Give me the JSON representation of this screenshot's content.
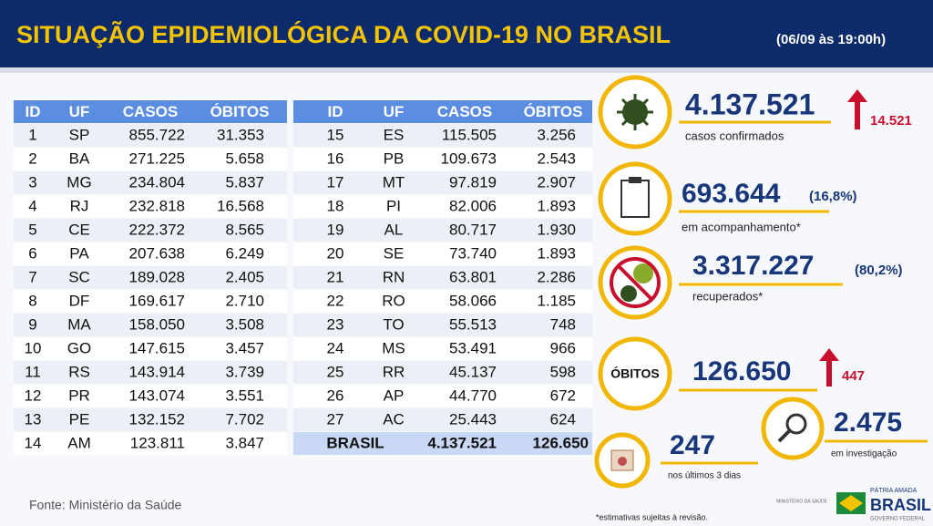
{
  "header": {
    "title": "SITUAÇÃO EPIDEMIOLÓGICA DA COVID-19 NO BRASIL",
    "subtitle": "(06/09 às 19:00h)"
  },
  "left_table": {
    "columns": [
      "ID",
      "UF",
      "CASOS",
      "ÓBITOS"
    ],
    "rows": [
      [
        "1",
        "SP",
        "855.722",
        "31.353"
      ],
      [
        "2",
        "BA",
        "271.225",
        "5.658"
      ],
      [
        "3",
        "MG",
        "234.804",
        "5.837"
      ],
      [
        "4",
        "RJ",
        "232.818",
        "16.568"
      ],
      [
        "5",
        "CE",
        "222.372",
        "8.565"
      ],
      [
        "6",
        "PA",
        "207.638",
        "6.249"
      ],
      [
        "7",
        "SC",
        "189.028",
        "2.405"
      ],
      [
        "8",
        "DF",
        "169.617",
        "2.710"
      ],
      [
        "9",
        "MA",
        "158.050",
        "3.508"
      ],
      [
        "10",
        "GO",
        "147.615",
        "3.457"
      ],
      [
        "11",
        "RS",
        "143.914",
        "3.739"
      ],
      [
        "12",
        "PR",
        "143.074",
        "3.551"
      ],
      [
        "13",
        "PE",
        "132.152",
        "7.702"
      ],
      [
        "14",
        "AM",
        "123.811",
        "3.847"
      ]
    ]
  },
  "right_table": {
    "columns": [
      "ID",
      "UF",
      "CASOS",
      "ÓBITOS"
    ],
    "rows": [
      [
        "15",
        "ES",
        "115.505",
        "3.256"
      ],
      [
        "16",
        "PB",
        "109.673",
        "2.543"
      ],
      [
        "17",
        "MT",
        "97.819",
        "2.907"
      ],
      [
        "18",
        "PI",
        "82.006",
        "1.893"
      ],
      [
        "19",
        "AL",
        "80.717",
        "1.930"
      ],
      [
        "20",
        "SE",
        "73.740",
        "1.893"
      ],
      [
        "21",
        "RN",
        "63.801",
        "2.286"
      ],
      [
        "22",
        "RO",
        "58.066",
        "1.185"
      ],
      [
        "23",
        "TO",
        "55.513",
        "748"
      ],
      [
        "24",
        "MS",
        "53.491",
        "966"
      ],
      [
        "25",
        "RR",
        "45.137",
        "598"
      ],
      [
        "26",
        "AP",
        "44.770",
        "672"
      ],
      [
        "27",
        "AC",
        "25.443",
        "624"
      ]
    ],
    "total": [
      "BRASIL",
      "4.137.521",
      "126.650"
    ]
  },
  "stats": {
    "confirmed": {
      "value": "4.137.521",
      "increase": "14.521",
      "label": "casos confirmados"
    },
    "monitoring": {
      "value": "693.644",
      "percent": "(16,8%)",
      "label": "em acompanhamento*"
    },
    "recovered": {
      "value": "3.317.227",
      "percent": "(80,2%)",
      "label": "recuperados*"
    },
    "deaths": {
      "badge": "ÓBITOS",
      "value": "126.650",
      "increase": "447"
    },
    "investigation": {
      "value": "2.475",
      "label": "em investigação"
    },
    "recent": {
      "value": "247",
      "label": "nos últimos 3 dias"
    }
  },
  "footer": {
    "source": "Fonte: Ministério da Saúde",
    "note": "*estimativas sujeitas à revisão.",
    "ministry": "MINISTÉRIO DA SAÚDE",
    "slogan": "PÁTRIA AMADA",
    "brand": "BRASIL",
    "government": "GOVERNO FEDERAL"
  }
}
